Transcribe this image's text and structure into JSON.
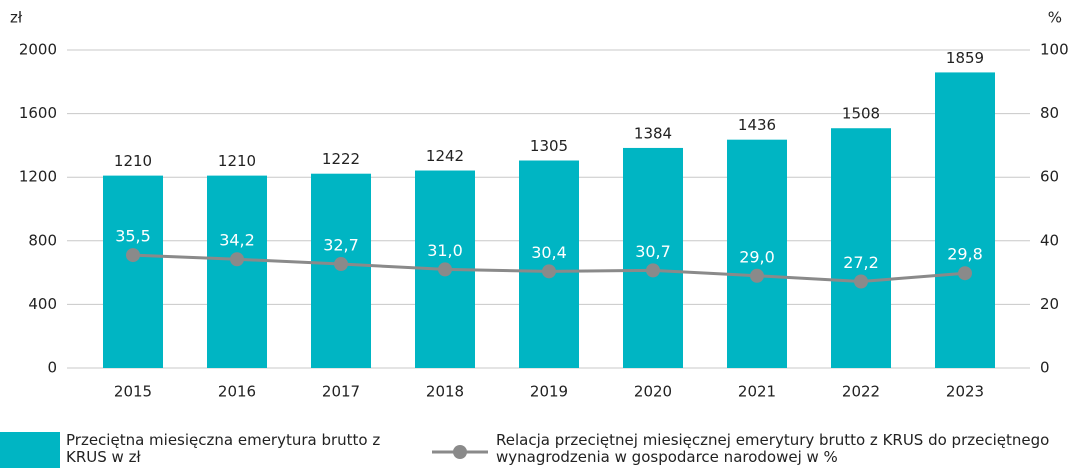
{
  "chart_data": {
    "type": "bar",
    "ylabel": "zł",
    "y2label": "%",
    "categories": [
      "2015",
      "2016",
      "2017",
      "2018",
      "2019",
      "2020",
      "2021",
      "2022",
      "2023"
    ],
    "series": [
      {
        "name": "Przeciętna miesięczna emerytura brutto z KRUS w zł",
        "color": "#00b5c3",
        "type": "bar",
        "values": [
          1210,
          1210,
          1222,
          1242,
          1305,
          1384,
          1436,
          1508,
          1859
        ]
      },
      {
        "name": "Relacja przeciętnej miesięcznej emerytury brutto z KRUS do przeciętnego wynagrodzenia w gospodarce narodowej w %",
        "color": "#8a8a8a",
        "type": "line",
        "axis": "y2",
        "values": [
          35.5,
          34.2,
          32.7,
          31.0,
          30.4,
          30.7,
          29.0,
          27.2,
          29.8
        ],
        "value_labels": [
          "35,5",
          "34,2",
          "32,7",
          "31,0",
          "30,4",
          "30,7",
          "29,0",
          "27,2",
          "29,8"
        ]
      }
    ],
    "ylim": [
      0,
      2000
    ],
    "yticks": [
      0,
      400,
      800,
      1200,
      1600,
      2000
    ],
    "y2lim": [
      0,
      100
    ],
    "y2ticks": [
      0,
      20,
      40,
      60,
      80,
      100
    ],
    "grid": true,
    "legend": "bottom"
  }
}
